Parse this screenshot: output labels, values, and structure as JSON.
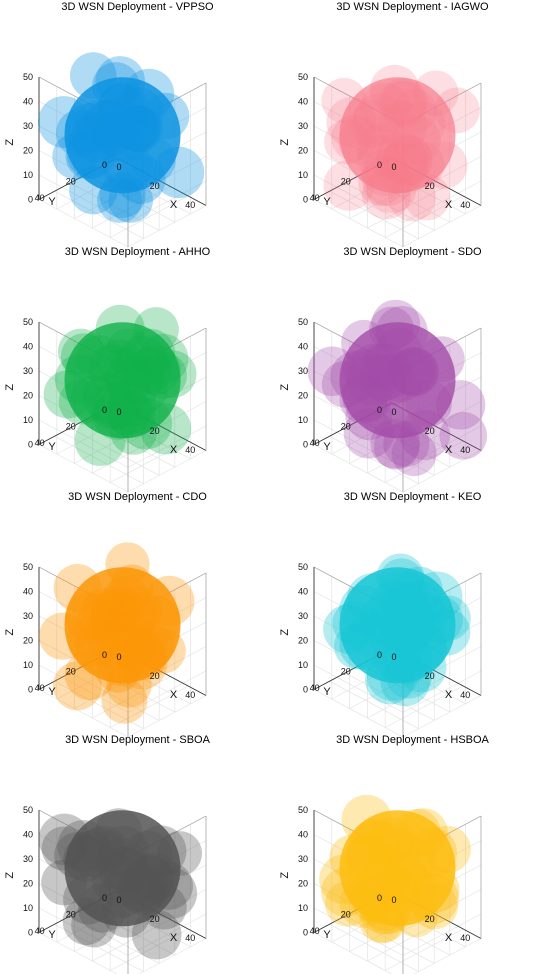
{
  "chart_data": [
    {
      "type": "scatter",
      "title": "3D WSN Deployment - VPPSO",
      "color": "#0d93e0",
      "opacity": 0.55,
      "xlabel": "X",
      "ylabel": "Y",
      "zlabel": "Z",
      "xlim": [
        0,
        50
      ],
      "ylim": [
        0,
        50
      ],
      "zlim": [
        0,
        50
      ],
      "xticks": [
        "0",
        "20",
        "40"
      ],
      "yticks": [
        "0",
        "20",
        "40"
      ],
      "zticks": [
        "0",
        "10",
        "20",
        "30",
        "40",
        "50"
      ],
      "grid": true
    },
    {
      "type": "scatter",
      "title": "3D WSN Deployment - IAGWO",
      "color": "#f77b8a",
      "opacity": 0.4,
      "xlabel": "X",
      "ylabel": "Y",
      "zlabel": "Z",
      "xlim": [
        0,
        50
      ],
      "ylim": [
        0,
        50
      ],
      "zlim": [
        0,
        50
      ],
      "xticks": [
        "0",
        "20",
        "40"
      ],
      "yticks": [
        "0",
        "20",
        "40"
      ],
      "zticks": [
        "0",
        "10",
        "20",
        "30",
        "40",
        "50"
      ],
      "grid": true
    },
    {
      "type": "scatter",
      "title": "3D WSN Deployment - AHHO",
      "color": "#0fb04a",
      "opacity": 0.5,
      "xlabel": "X",
      "ylabel": "Y",
      "zlabel": "Z",
      "xlim": [
        0,
        50
      ],
      "ylim": [
        0,
        50
      ],
      "zlim": [
        0,
        50
      ],
      "xticks": [
        "0",
        "20",
        "40"
      ],
      "yticks": [
        "0",
        "20",
        "40"
      ],
      "zticks": [
        "0",
        "10",
        "20",
        "30",
        "40",
        "50"
      ],
      "grid": true
    },
    {
      "type": "scatter",
      "title": "3D WSN Deployment - SDO",
      "color": "#a24ba8",
      "opacity": 0.5,
      "xlabel": "X",
      "ylabel": "Y",
      "zlabel": "Z",
      "xlim": [
        0,
        50
      ],
      "ylim": [
        0,
        50
      ],
      "zlim": [
        0,
        50
      ],
      "xticks": [
        "0",
        "20",
        "40"
      ],
      "yticks": [
        "0",
        "20",
        "40"
      ],
      "zticks": [
        "0",
        "10",
        "20",
        "30",
        "40",
        "50"
      ],
      "grid": true
    },
    {
      "type": "scatter",
      "title": "3D WSN Deployment - CDO",
      "color": "#fb9606",
      "opacity": 0.55,
      "xlabel": "X",
      "ylabel": "Y",
      "zlabel": "Z",
      "xlim": [
        0,
        50
      ],
      "ylim": [
        0,
        50
      ],
      "zlim": [
        0,
        50
      ],
      "xticks": [
        "0",
        "20",
        "40"
      ],
      "yticks": [
        "0",
        "20",
        "40"
      ],
      "zticks": [
        "0",
        "10",
        "20",
        "30",
        "40",
        "50"
      ],
      "grid": true
    },
    {
      "type": "scatter",
      "title": "3D WSN Deployment - KEO",
      "color": "#18c6d5",
      "opacity": 0.55,
      "xlabel": "X",
      "ylabel": "Y",
      "zlabel": "Z",
      "xlim": [
        0,
        50
      ],
      "ylim": [
        0,
        50
      ],
      "zlim": [
        0,
        50
      ],
      "xticks": [
        "0",
        "20",
        "40"
      ],
      "yticks": [
        "0",
        "20",
        "40"
      ],
      "zticks": [
        "0",
        "10",
        "20",
        "30",
        "40",
        "50"
      ],
      "grid": true
    },
    {
      "type": "scatter",
      "title": "3D WSN Deployment - SBOA",
      "color": "#545454",
      "opacity": 0.55,
      "xlabel": "X",
      "ylabel": "Y",
      "zlabel": "Z",
      "xlim": [
        0,
        50
      ],
      "ylim": [
        0,
        50
      ],
      "zlim": [
        0,
        50
      ],
      "xticks": [
        "0",
        "20",
        "40"
      ],
      "yticks": [
        "0",
        "20",
        "40"
      ],
      "zticks": [
        "0",
        "10",
        "20",
        "30",
        "40",
        "50"
      ],
      "grid": true
    },
    {
      "type": "scatter",
      "title": "3D WSN Deployment - HSBOA",
      "color": "#fdbd10",
      "opacity": 0.55,
      "xlabel": "X",
      "ylabel": "Y",
      "zlabel": "Z",
      "xlim": [
        0,
        50
      ],
      "ylim": [
        0,
        50
      ],
      "zlim": [
        0,
        50
      ],
      "xticks": [
        "0",
        "20",
        "40"
      ],
      "yticks": [
        "0",
        "20",
        "40"
      ],
      "zticks": [
        "0",
        "10",
        "20",
        "30",
        "40",
        "50"
      ],
      "grid": true
    }
  ]
}
